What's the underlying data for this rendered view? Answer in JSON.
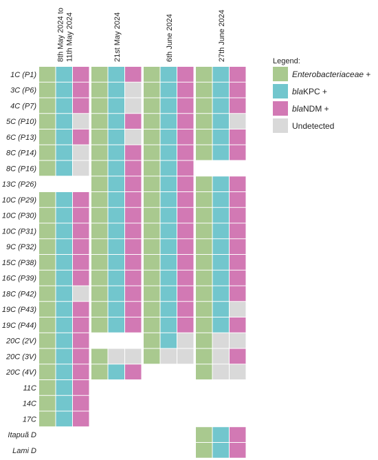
{
  "chart_data": {
    "type": "heatmap",
    "title": "",
    "dates": [
      [
        "8th May 2024 to",
        "11th May 2024"
      ],
      [
        "21st May 2024"
      ],
      [
        "6th June 2024"
      ],
      [
        "27th June 2024"
      ]
    ],
    "samples": [
      "1C (P1)",
      "3C (P6)",
      "4C (P7)",
      "5C (P10)",
      "6C (P13)",
      "8C (P14)",
      "8C (P16)",
      "13C (P26)",
      "10C (P29)",
      "10C (P30)",
      "10C (P31)",
      "9C (P32)",
      "15C (P38)",
      "16C (P39)",
      "18C (P42)",
      "19C (P43)",
      "19C (P44)",
      "20C (2V)",
      "20C (3V)",
      "20C (4V)",
      "11C",
      "14C",
      "17C",
      "Itapuã D",
      "Lami D"
    ],
    "markers": [
      "Enterobacteriaceae",
      "blaKPC",
      "blaNDM"
    ],
    "states": {
      "E": "Enterobacteriaceae +",
      "K": "blaKPC +",
      "N": "blaNDM +",
      "U": "Undetected"
    },
    "values": [
      [
        "EKN",
        "EKN",
        "EKN",
        "EKN"
      ],
      [
        "EKN",
        "EKU",
        "EKN",
        "EKN"
      ],
      [
        "EKN",
        "EKU",
        "EKN",
        "EKN"
      ],
      [
        "EKU",
        "EKN",
        "EKN",
        "EKU"
      ],
      [
        "EKN",
        "EKU",
        "EKN",
        "EKN"
      ],
      [
        "EKU",
        "EKN",
        "EKN",
        "EKN"
      ],
      [
        "EKU",
        "EKN",
        "EKN",
        null
      ],
      [
        null,
        "EKN",
        "EKN",
        "EKN"
      ],
      [
        "EKN",
        "EKN",
        "EKN",
        "EKN"
      ],
      [
        "EKN",
        "EKN",
        "EKN",
        "EKN"
      ],
      [
        "EKN",
        "EKN",
        "EKN",
        "EKN"
      ],
      [
        "EKN",
        "EKN",
        "EKN",
        "EKN"
      ],
      [
        "EKN",
        "EKN",
        "EKN",
        "EKN"
      ],
      [
        "EKN",
        "EKN",
        "EKN",
        "EKN"
      ],
      [
        "EKU",
        "EKN",
        "EKN",
        "EKN"
      ],
      [
        "EKN",
        "EKN",
        "EKN",
        "EKU"
      ],
      [
        "EKN",
        "EKN",
        "EKN",
        "EKN"
      ],
      [
        "EKN",
        null,
        "EKU",
        "EUU"
      ],
      [
        "EKN",
        "EUU",
        "EUU",
        "EUN"
      ],
      [
        "EKN",
        "EKN",
        null,
        "EUU"
      ],
      [
        "EKN",
        null,
        null,
        null
      ],
      [
        "EKN",
        null,
        null,
        null
      ],
      [
        "EKN",
        null,
        null,
        null
      ],
      [
        null,
        null,
        null,
        "EKN"
      ],
      [
        null,
        null,
        null,
        "EKN"
      ]
    ],
    "legend": {
      "title": "Legend:",
      "position": "top-right",
      "items": [
        {
          "key": "E",
          "italic": "Enterobacteriaceae",
          "plain": " +",
          "color": "#a9c98f"
        },
        {
          "key": "K",
          "italic": "bla",
          "plain": "KPC +",
          "color": "#72c6cd"
        },
        {
          "key": "N",
          "italic": "bla",
          "plain": "NDM +",
          "color": "#d279b4"
        },
        {
          "key": "U",
          "italic": "",
          "plain": "Undetected",
          "color": "#d9d9d9"
        }
      ]
    }
  }
}
